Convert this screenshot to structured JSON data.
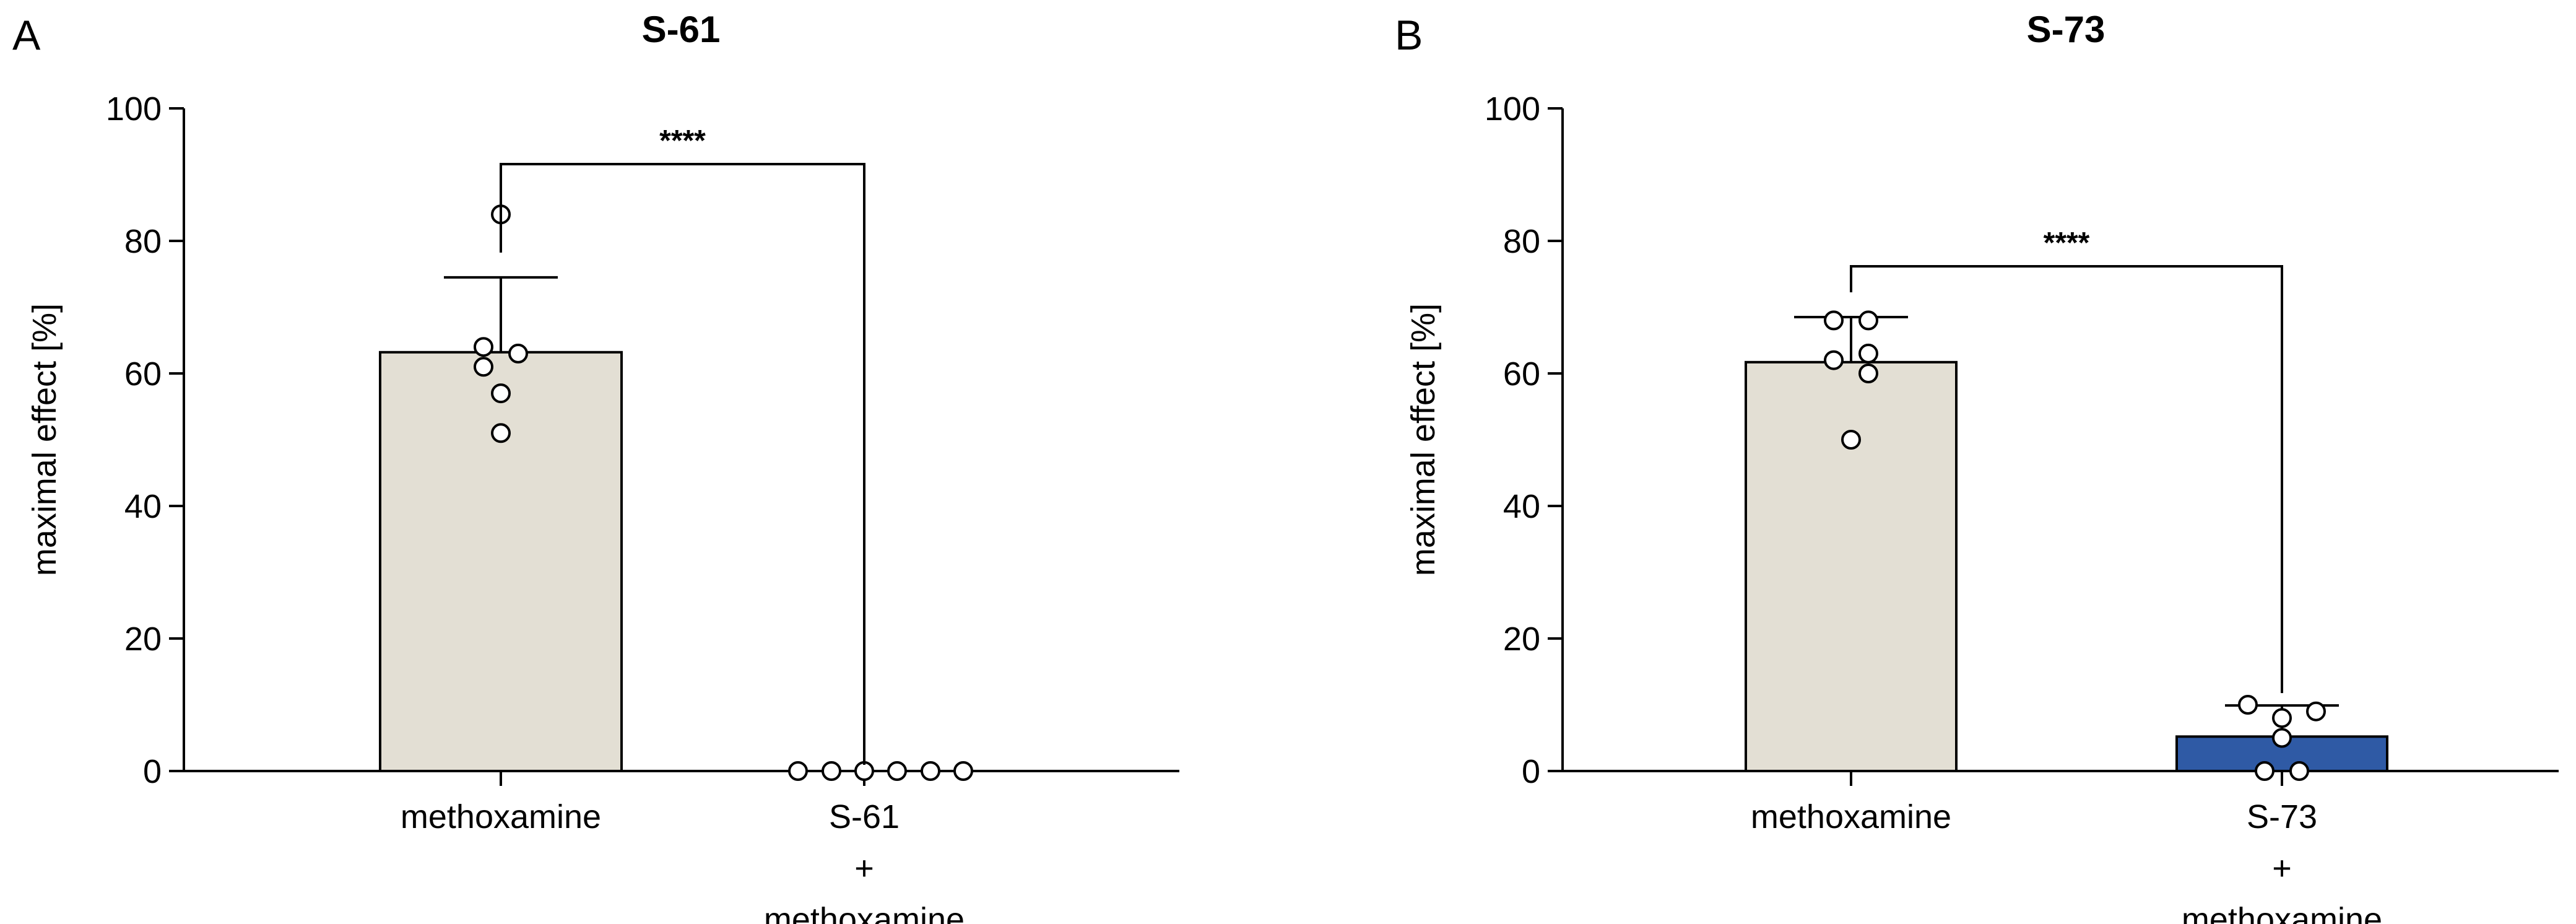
{
  "chart_data": [
    {
      "type": "bar",
      "panel_label": "A",
      "title": "S-61",
      "ylabel": "maximal effect [%]",
      "ylim": [
        0,
        100
      ],
      "yticks": [
        0,
        20,
        40,
        60,
        80,
        100
      ],
      "categories": [
        [
          "methoxamine"
        ],
        [
          "S-61",
          "+",
          "methoxamine"
        ]
      ],
      "values": [
        63.2,
        0
      ],
      "error_upper": [
        74.5,
        null
      ],
      "bar_colors": [
        "#e3dfd4",
        "#2f5aa5"
      ],
      "points": [
        [
          84,
          64,
          61,
          63,
          57,
          51
        ],
        [
          0,
          0,
          0,
          0,
          0,
          0
        ]
      ],
      "significance": "****"
    },
    {
      "type": "bar",
      "panel_label": "B",
      "title": "S-73",
      "ylabel": "maximal effect [%]",
      "ylim": [
        0,
        100
      ],
      "yticks": [
        0,
        20,
        40,
        60,
        80,
        100
      ],
      "categories": [
        [
          "methoxamine"
        ],
        [
          "S-73",
          "+",
          "methoxamine"
        ]
      ],
      "values": [
        61.7,
        5.2
      ],
      "error_upper": [
        68.5,
        9.9
      ],
      "bar_colors": [
        "#e3dfd4",
        "#2f5aa5"
      ],
      "points": [
        [
          68,
          68,
          62,
          63,
          60,
          50
        ],
        [
          10,
          9,
          8,
          5,
          0,
          0
        ]
      ],
      "significance": "****"
    }
  ]
}
